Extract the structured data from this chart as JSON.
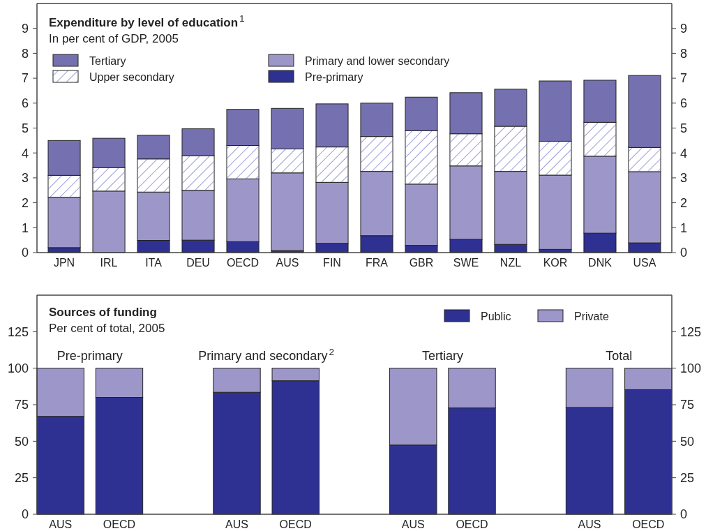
{
  "chart_data": [
    {
      "type": "bar",
      "title": "Expenditure by level of education$^{1}$",
      "subtitle": "In per cent of GDP, 2005",
      "stacked": true,
      "categories": [
        "JPN",
        "IRL",
        "ITA",
        "DEU",
        "OECD",
        "AUS",
        "FIN",
        "FRA",
        "GBR",
        "SWE",
        "NZL",
        "KOR",
        "DNK",
        "USA"
      ],
      "series": [
        {
          "name": "Pre-primary",
          "color": "#2e3192",
          "values": [
            0.2,
            0,
            0.49,
            0.5,
            0.44,
            0.08,
            0.37,
            0.68,
            0.29,
            0.53,
            0.33,
            0.13,
            0.78,
            0.39
          ]
        },
        {
          "name": "Primary and lower secondary",
          "color": "#9d97c9",
          "values": [
            2.02,
            2.47,
            1.94,
            2.0,
            2.52,
            3.12,
            2.45,
            2.58,
            2.46,
            2.95,
            2.93,
            2.98,
            3.09,
            2.86
          ]
        },
        {
          "name": "Upper secondary",
          "color": "#ffffff",
          "values": [
            0.88,
            0.94,
            1.33,
            1.39,
            1.34,
            0.96,
            1.42,
            1.4,
            2.14,
            1.29,
            1.81,
            1.36,
            1.36,
            0.97
          ]
        },
        {
          "name": "Tertiary",
          "color": "#7570b0",
          "values": [
            1.4,
            1.18,
            0.95,
            1.08,
            1.45,
            1.63,
            1.73,
            1.34,
            1.35,
            1.65,
            1.49,
            2.42,
            1.69,
            2.89
          ]
        }
      ],
      "ylim": [
        0,
        10
      ],
      "yticks": [
        0,
        1,
        2,
        3,
        4,
        5,
        6,
        7,
        8,
        9
      ],
      "y2lim": [
        0,
        10
      ],
      "y2ticks": [
        0,
        1,
        2,
        3,
        4,
        5,
        6,
        7,
        8,
        9
      ],
      "grid": false,
      "legend": "top left"
    },
    {
      "type": "bar",
      "title": "Sources of funding",
      "subtitle": "Per cent of total, 2005",
      "stacked": true,
      "categories": [
        "AUS",
        "OECD",
        null,
        "AUS",
        "OECD",
        null,
        "AUS",
        "OECD",
        null,
        "AUS",
        "OECD"
      ],
      "series": [
        {
          "name": "Public",
          "color": "#2e3192",
          "values": [
            67,
            80,
            null,
            83.5,
            91.4,
            null,
            47.4,
            72.8,
            null,
            73.1,
            85.3
          ]
        },
        {
          "name": "Private",
          "color": "#9d97c9",
          "values": [
            33,
            20,
            null,
            16.5,
            8.6,
            null,
            52.6,
            27.2,
            null,
            26.9,
            14.7
          ]
        }
      ],
      "annotations": [
        "Pre-primary",
        "Primary and secondary$^{2}$",
        "Tertiary",
        "Total"
      ],
      "ylim": [
        0,
        150
      ],
      "yticks": [
        0,
        25,
        50,
        75,
        100,
        125
      ],
      "y2lim": [
        0,
        150
      ],
      "y2ticks": [
        0,
        25,
        50,
        75,
        100,
        125
      ],
      "grid": false,
      "legend": "top right"
    }
  ]
}
